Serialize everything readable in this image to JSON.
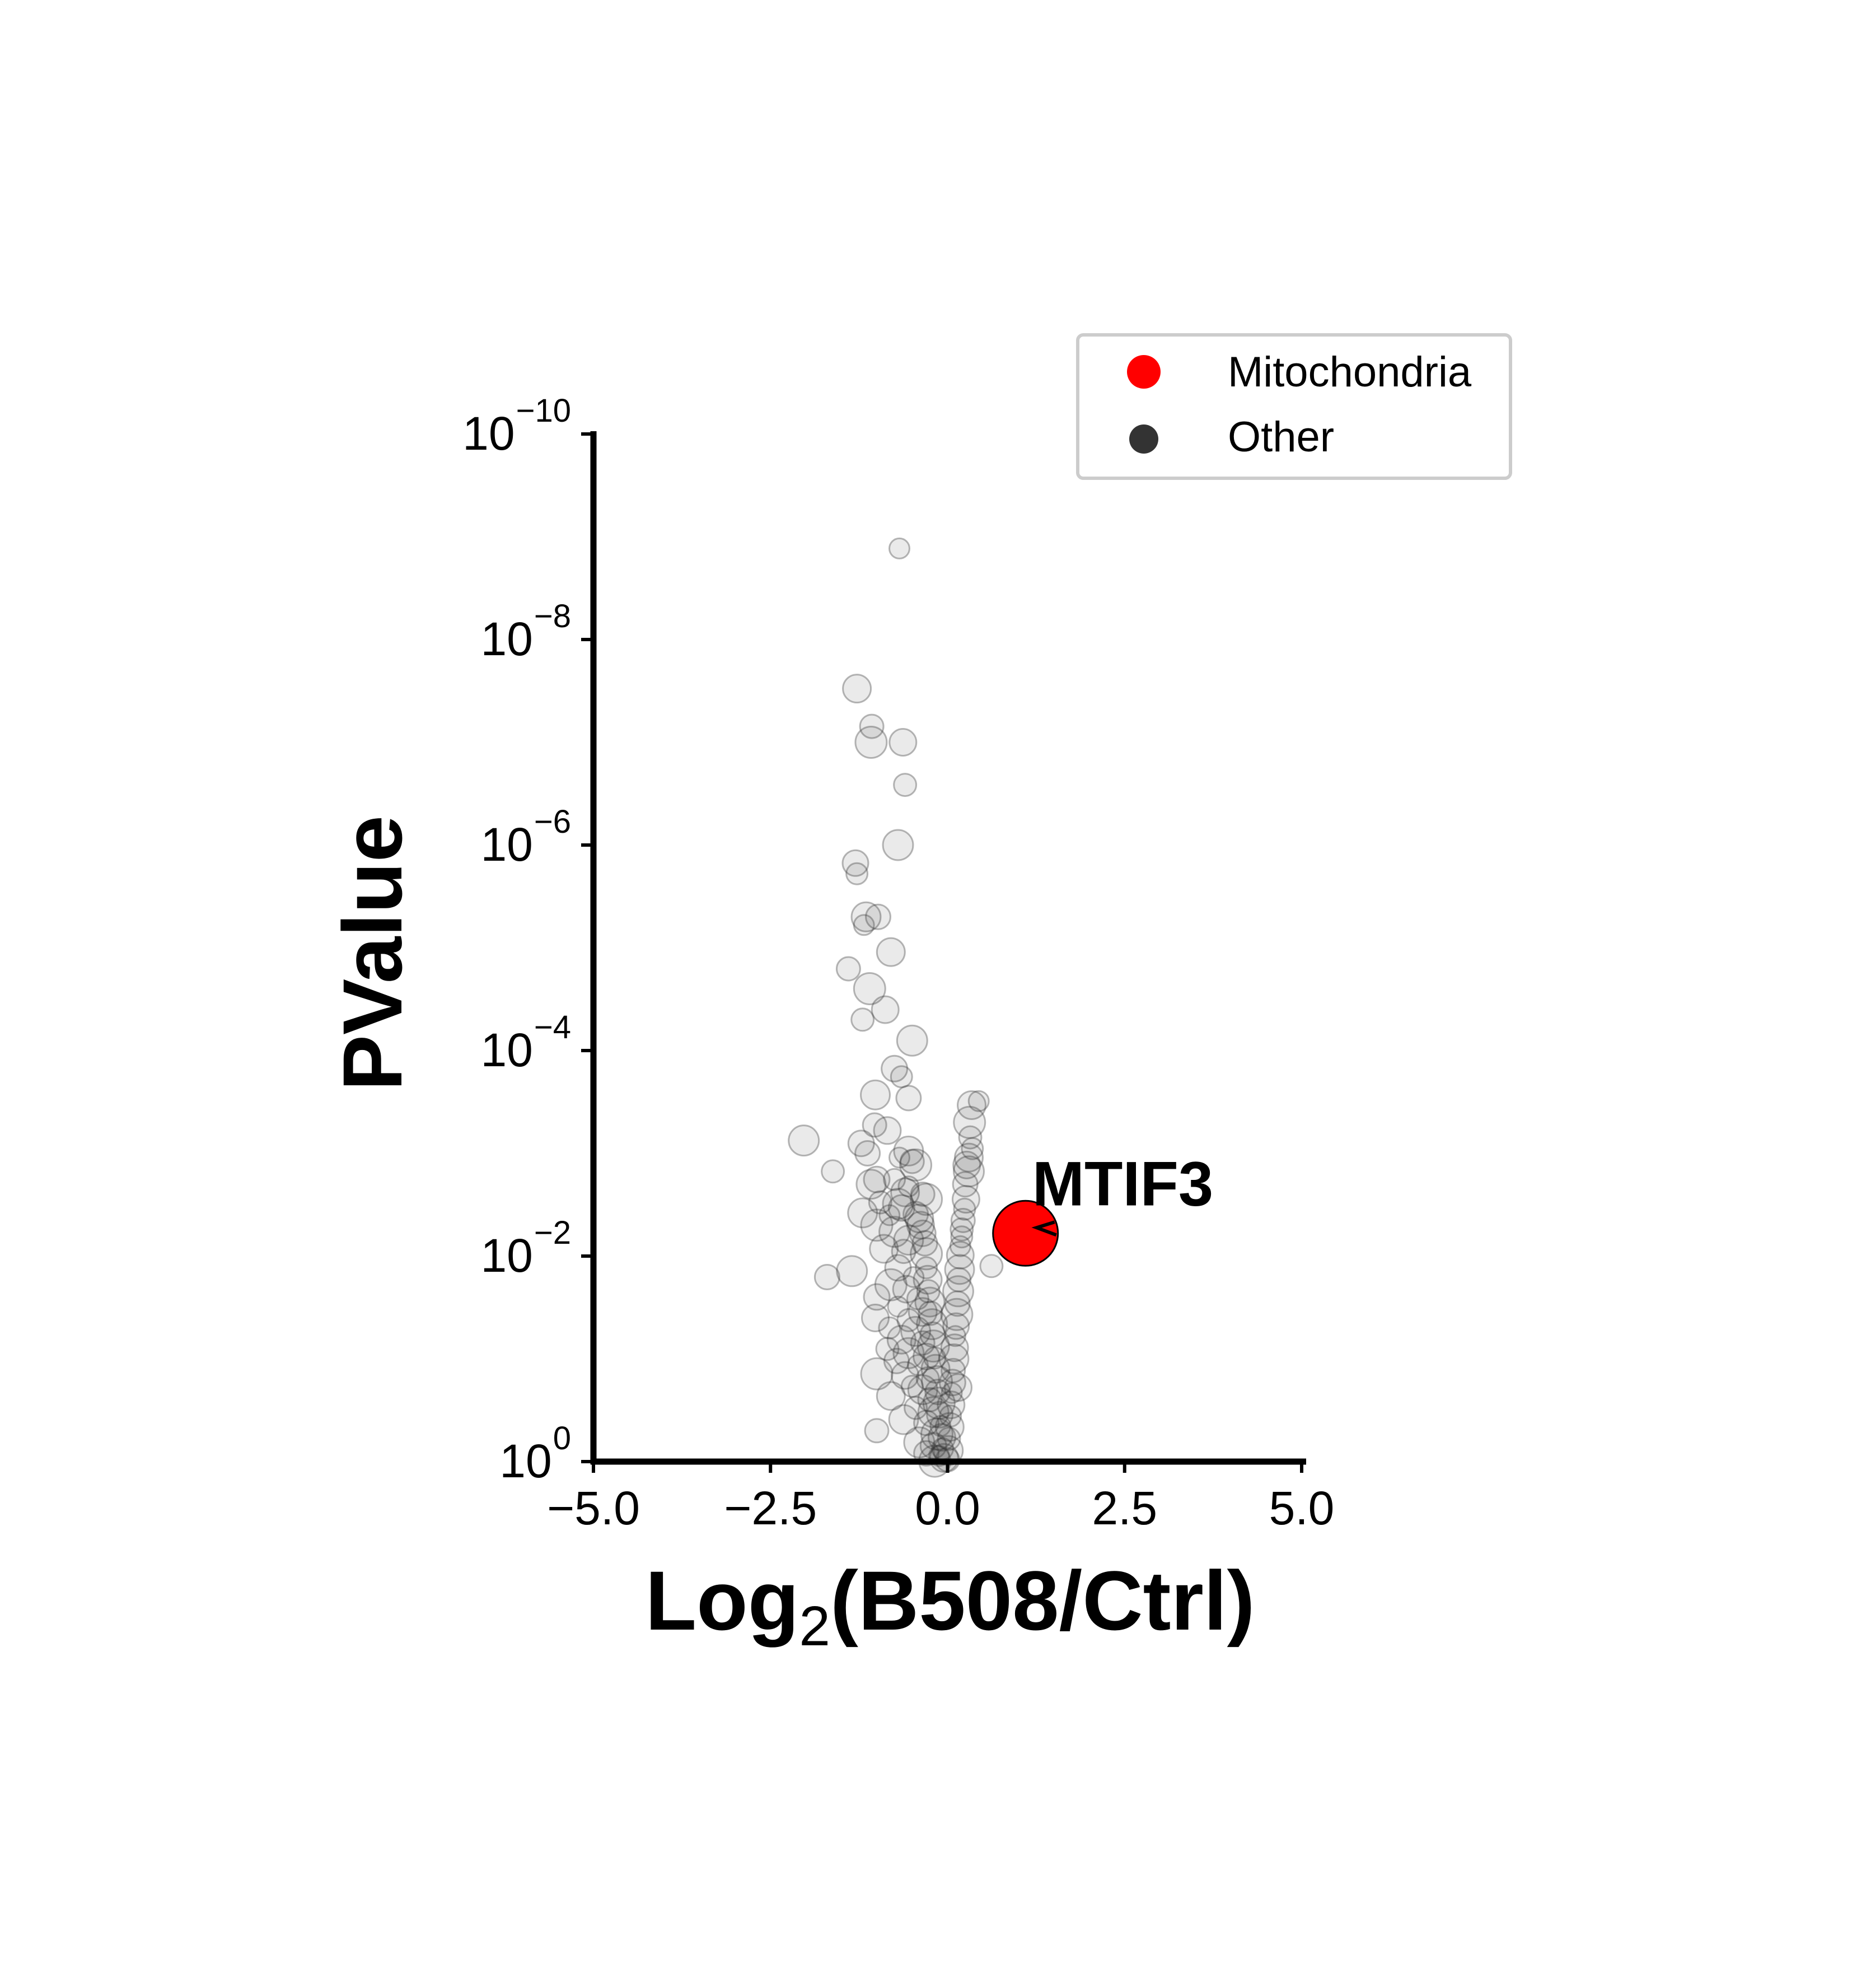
{
  "chart_data": {
    "type": "scatter",
    "title": "",
    "xlabel": {
      "prefix": "Log",
      "subscript": "2",
      "suffix": "(B508/Ctrl)"
    },
    "ylabel": "PValue",
    "xlim": [
      -5.0,
      5.0
    ],
    "ylim": [
      1,
      1e-10
    ],
    "yscale": "log",
    "y_inverted": true,
    "grid": false,
    "legend_position": "top-right",
    "x_ticks": [
      "−5.0",
      "−2.5",
      "0.0",
      "2.5",
      "5.0"
    ],
    "y_ticks": [
      {
        "base": "10",
        "exp": "0"
      },
      {
        "base": "10",
        "exp": "−2"
      },
      {
        "base": "10",
        "exp": "−4"
      },
      {
        "base": "10",
        "exp": "−6"
      },
      {
        "base": "10",
        "exp": "−8"
      },
      {
        "base": "10",
        "exp": "−10"
      }
    ],
    "series": [
      {
        "name": "Other",
        "color": "#333333",
        "points": [
          [
            -0.68,
            1.3e-09
          ],
          [
            -1.28,
            3e-08
          ],
          [
            -1.07,
            7e-08
          ],
          [
            -1.08,
            1e-07
          ],
          [
            -0.63,
            1e-07
          ],
          [
            -0.6,
            2.6e-07
          ],
          [
            -0.7,
            1e-06
          ],
          [
            -1.3,
            1.5e-06
          ],
          [
            -1.28,
            1.9e-06
          ],
          [
            -1.15,
            5e-06
          ],
          [
            -0.98,
            5e-06
          ],
          [
            -1.18,
            6e-06
          ],
          [
            -0.8,
            1.1e-05
          ],
          [
            -1.4,
            1.6e-05
          ],
          [
            -1.1,
            2.5e-05
          ],
          [
            -0.88,
            4e-05
          ],
          [
            -1.2,
            5e-05
          ],
          [
            -0.5,
            8e-05
          ],
          [
            -0.75,
            0.00015
          ],
          [
            -0.65,
            0.00018
          ],
          [
            -1.02,
            0.00027
          ],
          [
            -0.55,
            0.00029
          ],
          [
            0.44,
            0.00031
          ],
          [
            0.34,
            0.00034
          ],
          [
            -1.03,
            0.00053
          ],
          [
            0.31,
            0.0005
          ],
          [
            -0.85,
            0.0006
          ],
          [
            0.32,
            0.0007
          ],
          [
            -2.03,
            0.00075
          ],
          [
            -1.22,
            0.0008
          ],
          [
            0.35,
            0.0009
          ],
          [
            -0.55,
            0.00095
          ],
          [
            -1.13,
            0.001
          ],
          [
            -0.68,
            0.0011
          ],
          [
            0.3,
            0.0011
          ],
          [
            -0.5,
            0.0012
          ],
          [
            -0.45,
            0.0013
          ],
          [
            0.27,
            0.0013
          ],
          [
            -1.62,
            0.0015
          ],
          [
            0.3,
            0.0015
          ],
          [
            -1.0,
            0.0018
          ],
          [
            -0.75,
            0.0018
          ],
          [
            -1.08,
            0.002
          ],
          [
            0.25,
            0.002
          ],
          [
            -0.55,
            0.0021
          ],
          [
            -0.6,
            0.0024
          ],
          [
            -0.35,
            0.0025
          ],
          [
            -0.3,
            0.0028
          ],
          [
            0.26,
            0.0028
          ],
          [
            -0.95,
            0.003
          ],
          [
            -0.7,
            0.0031
          ],
          [
            -0.65,
            0.0034
          ],
          [
            0.24,
            0.0035
          ],
          [
            -1.2,
            0.0038
          ],
          [
            -0.45,
            0.0039
          ],
          [
            -0.82,
            0.004
          ],
          [
            -0.4,
            0.0043
          ],
          [
            0.22,
            0.0045
          ],
          [
            -1.0,
            0.005
          ],
          [
            -0.38,
            0.005
          ],
          [
            0.2,
            0.0055
          ],
          [
            -0.75,
            0.0058
          ],
          [
            -0.35,
            0.006
          ],
          [
            0.2,
            0.0065
          ],
          [
            -0.55,
            0.007
          ],
          [
            -0.32,
            0.0075
          ],
          [
            0.18,
            0.008
          ],
          [
            -0.9,
            0.0085
          ],
          [
            -0.62,
            0.009
          ],
          [
            -0.3,
            0.0095
          ],
          [
            0.18,
            0.0098
          ],
          [
            0.62,
            0.0125
          ],
          [
            -1.35,
            0.014
          ],
          [
            -0.7,
            0.013
          ],
          [
            -0.3,
            0.013
          ],
          [
            0.17,
            0.0135
          ],
          [
            -1.7,
            0.016
          ],
          [
            -0.48,
            0.016
          ],
          [
            -0.28,
            0.017
          ],
          [
            0.16,
            0.017
          ],
          [
            -0.8,
            0.019
          ],
          [
            -0.58,
            0.021
          ],
          [
            -0.27,
            0.022
          ],
          [
            0.15,
            0.022
          ],
          [
            -1.0,
            0.025
          ],
          [
            -0.42,
            0.026
          ],
          [
            -0.25,
            0.028
          ],
          [
            0.14,
            0.029
          ],
          [
            -0.7,
            0.031
          ],
          [
            -0.35,
            0.035
          ],
          [
            -0.24,
            0.036
          ],
          [
            0.13,
            0.037
          ],
          [
            -1.02,
            0.04
          ],
          [
            -0.55,
            0.042
          ],
          [
            -0.22,
            0.046
          ],
          [
            0.12,
            0.048
          ],
          [
            -0.82,
            0.05
          ],
          [
            -0.45,
            0.054
          ],
          [
            -0.21,
            0.058
          ],
          [
            0.11,
            0.06
          ],
          [
            -0.65,
            0.065
          ],
          [
            -0.35,
            0.07
          ],
          [
            -0.2,
            0.075
          ],
          [
            0.1,
            0.078
          ],
          [
            -0.85,
            0.08
          ],
          [
            -0.55,
            0.088
          ],
          [
            -0.3,
            0.095
          ],
          [
            -0.18,
            0.098
          ],
          [
            0.09,
            0.1
          ],
          [
            -0.72,
            0.105
          ],
          [
            -0.42,
            0.115
          ],
          [
            -0.17,
            0.125
          ],
          [
            0.08,
            0.13
          ],
          [
            -1.0,
            0.14
          ],
          [
            -0.6,
            0.145
          ],
          [
            -0.28,
            0.155
          ],
          [
            -0.15,
            0.165
          ],
          [
            0.07,
            0.17
          ],
          [
            -0.5,
            0.185
          ],
          [
            -0.35,
            0.2
          ],
          [
            -0.14,
            0.21
          ],
          [
            0.06,
            0.215
          ],
          [
            -0.8,
            0.23
          ],
          [
            -0.25,
            0.25
          ],
          [
            -0.12,
            0.27
          ],
          [
            0.05,
            0.28
          ],
          [
            -0.45,
            0.3
          ],
          [
            -0.2,
            0.33
          ],
          [
            -0.11,
            0.35
          ],
          [
            0.04,
            0.36
          ],
          [
            -0.62,
            0.39
          ],
          [
            -0.3,
            0.42
          ],
          [
            -0.1,
            0.45
          ],
          [
            0.03,
            0.46
          ],
          [
            -1.0,
            0.5
          ],
          [
            -0.15,
            0.54
          ],
          [
            -0.08,
            0.58
          ],
          [
            0.02,
            0.6
          ],
          [
            -0.4,
            0.65
          ],
          [
            -0.2,
            0.7
          ],
          [
            -0.07,
            0.75
          ],
          [
            0.01,
            0.78
          ],
          [
            -0.3,
            0.83
          ],
          [
            -0.12,
            0.88
          ],
          [
            -0.05,
            0.92
          ],
          [
            0.0,
            0.96
          ],
          [
            -0.18,
            0.99
          ],
          [
            0.15,
            0.19
          ]
        ]
      },
      {
        "name": "Mitochondria",
        "color": "#ff0000",
        "points": [
          [
            1.1,
            0.006
          ]
        ]
      }
    ],
    "annotations": [
      {
        "text": "MTIF3",
        "x": 1.1,
        "y": 0.006
      }
    ]
  }
}
